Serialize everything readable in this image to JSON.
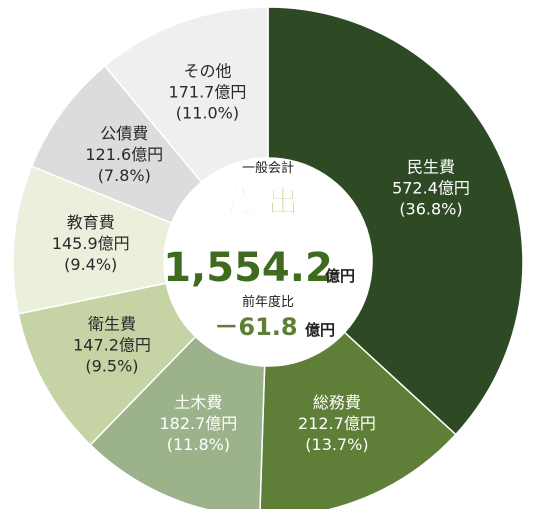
{
  "chart_data": {
    "type": "pie",
    "donut": true,
    "center": {
      "subtitle": "一般会計",
      "title": "歳出",
      "total_value": "1,554.2",
      "total_unit": "億円",
      "compare_label": "前年度比",
      "compare_value": "－61.8",
      "compare_unit": "億円"
    },
    "slices": [
      {
        "label": "民生費",
        "value": 572.4,
        "value_text": "572.4億円",
        "pct_text": "(36.8%)",
        "color": "#2d4a24",
        "text_color": "#ffffff"
      },
      {
        "label": "総務費",
        "value": 212.7,
        "value_text": "212.7億円",
        "pct_text": "(13.7%)",
        "color": "#5f7f38",
        "text_color": "#ffffff"
      },
      {
        "label": "土木費",
        "value": 182.7,
        "value_text": "182.7億円",
        "pct_text": "(11.8%)",
        "color": "#9cb28a",
        "text_color": "#ffffff"
      },
      {
        "label": "衛生費",
        "value": 147.2,
        "value_text": "147.2億円",
        "pct_text": "(9.5%)",
        "color": "#c5d3a5",
        "text_color": "#2a2a2a"
      },
      {
        "label": "教育費",
        "value": 145.9,
        "value_text": "145.9億円",
        "pct_text": "(9.4%)",
        "color": "#eaf0dc",
        "text_color": "#2a2a2a"
      },
      {
        "label": "公債費",
        "value": 121.6,
        "value_text": "121.6億円",
        "pct_text": "(7.8%)",
        "color": "#dcdcdc",
        "text_color": "#2a2a2a"
      },
      {
        "label": "その他",
        "value": 171.7,
        "value_text": "171.7億円",
        "pct_text": "(11.0%)",
        "color": "#efefef",
        "text_color": "#2a2a2a"
      }
    ],
    "colors": {
      "title_green": "#7cae3a",
      "total_green": "#3f6b1f",
      "compare_green": "#5f7f38",
      "divider": "#ffffff"
    }
  }
}
